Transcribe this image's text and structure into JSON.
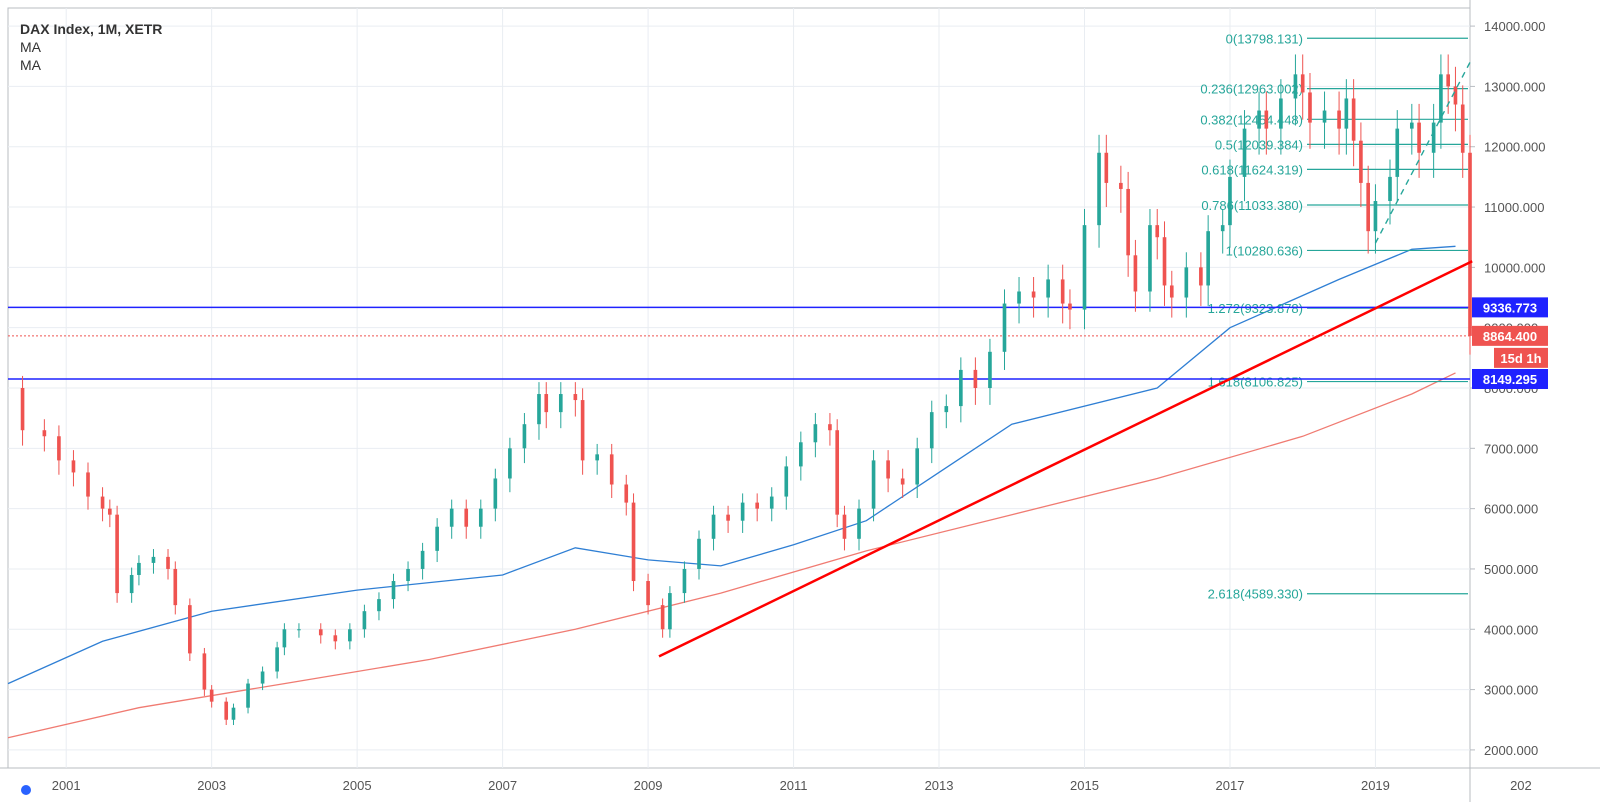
{
  "chart_data": {
    "type": "candlestick",
    "title": "DAX Index, 1M, XETR",
    "indicators": [
      "MA",
      "MA"
    ],
    "ylim": [
      1700,
      14300
    ],
    "y_ticks": [
      "2000.000",
      "3000.000",
      "4000.000",
      "5000.000",
      "6000.000",
      "7000.000",
      "8000.000",
      "9000.000",
      "10000.000",
      "11000.000",
      "12000.000",
      "13000.000",
      "14000.000"
    ],
    "x_ticks": [
      "2001",
      "2003",
      "2005",
      "2007",
      "2009",
      "2011",
      "2013",
      "2015",
      "2017",
      "2019",
      "202"
    ],
    "x_range": [
      2000.2,
      2020.3
    ],
    "close_series": [
      [
        2000.2,
        8000
      ],
      [
        2000.4,
        7300
      ],
      [
        2000.7,
        7200
      ],
      [
        2000.9,
        6800
      ],
      [
        2001.1,
        6600
      ],
      [
        2001.3,
        6200
      ],
      [
        2001.5,
        6000
      ],
      [
        2001.6,
        5900
      ],
      [
        2001.7,
        4600
      ],
      [
        2001.9,
        4900
      ],
      [
        2002.0,
        5100
      ],
      [
        2002.2,
        5200
      ],
      [
        2002.4,
        5000
      ],
      [
        2002.5,
        4400
      ],
      [
        2002.7,
        3600
      ],
      [
        2002.9,
        3000
      ],
      [
        2003.0,
        2800
      ],
      [
        2003.2,
        2500
      ],
      [
        2003.3,
        2700
      ],
      [
        2003.5,
        3100
      ],
      [
        2003.7,
        3300
      ],
      [
        2003.9,
        3700
      ],
      [
        2004.0,
        4000
      ],
      [
        2004.2,
        4000
      ],
      [
        2004.5,
        3900
      ],
      [
        2004.7,
        3800
      ],
      [
        2004.9,
        4000
      ],
      [
        2005.1,
        4300
      ],
      [
        2005.3,
        4500
      ],
      [
        2005.5,
        4800
      ],
      [
        2005.7,
        5000
      ],
      [
        2005.9,
        5300
      ],
      [
        2006.1,
        5700
      ],
      [
        2006.3,
        6000
      ],
      [
        2006.5,
        5700
      ],
      [
        2006.7,
        6000
      ],
      [
        2006.9,
        6500
      ],
      [
        2007.1,
        7000
      ],
      [
        2007.3,
        7400
      ],
      [
        2007.5,
        7900
      ],
      [
        2007.6,
        7600
      ],
      [
        2007.8,
        7900
      ],
      [
        2008.0,
        7800
      ],
      [
        2008.1,
        6800
      ],
      [
        2008.3,
        6900
      ],
      [
        2008.5,
        6400
      ],
      [
        2008.7,
        6100
      ],
      [
        2008.8,
        4800
      ],
      [
        2009.0,
        4400
      ],
      [
        2009.2,
        4000
      ],
      [
        2009.3,
        4600
      ],
      [
        2009.5,
        5000
      ],
      [
        2009.7,
        5500
      ],
      [
        2009.9,
        5900
      ],
      [
        2010.1,
        5800
      ],
      [
        2010.3,
        6100
      ],
      [
        2010.5,
        6000
      ],
      [
        2010.7,
        6200
      ],
      [
        2010.9,
        6700
      ],
      [
        2011.1,
        7100
      ],
      [
        2011.3,
        7400
      ],
      [
        2011.5,
        7300
      ],
      [
        2011.6,
        5900
      ],
      [
        2011.7,
        5500
      ],
      [
        2011.9,
        6000
      ],
      [
        2012.1,
        6800
      ],
      [
        2012.3,
        6500
      ],
      [
        2012.5,
        6400
      ],
      [
        2012.7,
        7000
      ],
      [
        2012.9,
        7600
      ],
      [
        2013.1,
        7700
      ],
      [
        2013.3,
        8300
      ],
      [
        2013.5,
        8000
      ],
      [
        2013.7,
        8600
      ],
      [
        2013.9,
        9400
      ],
      [
        2014.1,
        9600
      ],
      [
        2014.3,
        9500
      ],
      [
        2014.5,
        9800
      ],
      [
        2014.7,
        9400
      ],
      [
        2014.8,
        9300
      ],
      [
        2015.0,
        10700
      ],
      [
        2015.2,
        11900
      ],
      [
        2015.3,
        11400
      ],
      [
        2015.5,
        11300
      ],
      [
        2015.6,
        10200
      ],
      [
        2015.7,
        9600
      ],
      [
        2015.9,
        10700
      ],
      [
        2016.0,
        10500
      ],
      [
        2016.1,
        9700
      ],
      [
        2016.2,
        9500
      ],
      [
        2016.4,
        10000
      ],
      [
        2016.6,
        9700
      ],
      [
        2016.7,
        10600
      ],
      [
        2016.9,
        10700
      ],
      [
        2017.0,
        11500
      ],
      [
        2017.2,
        12300
      ],
      [
        2017.4,
        12600
      ],
      [
        2017.5,
        12300
      ],
      [
        2017.7,
        12800
      ],
      [
        2017.9,
        13200
      ],
      [
        2018.0,
        12900
      ],
      [
        2018.1,
        12400
      ],
      [
        2018.3,
        12600
      ],
      [
        2018.5,
        12300
      ],
      [
        2018.6,
        12800
      ],
      [
        2018.7,
        12100
      ],
      [
        2018.8,
        11400
      ],
      [
        2018.9,
        10600
      ],
      [
        2019.0,
        11100
      ],
      [
        2019.2,
        11500
      ],
      [
        2019.3,
        12300
      ],
      [
        2019.5,
        12400
      ],
      [
        2019.6,
        11900
      ],
      [
        2019.8,
        12400
      ],
      [
        2019.9,
        13200
      ],
      [
        2020.0,
        13000
      ],
      [
        2020.1,
        12700
      ],
      [
        2020.2,
        11900
      ],
      [
        2020.3,
        8864
      ]
    ],
    "ma_long": {
      "color": "#2f7fd4",
      "points": [
        [
          2000.2,
          3100
        ],
        [
          2001.5,
          3800
        ],
        [
          2003,
          4300
        ],
        [
          2005,
          4650
        ],
        [
          2007,
          4900
        ],
        [
          2008,
          5350
        ],
        [
          2009,
          5150
        ],
        [
          2010,
          5050
        ],
        [
          2011,
          5400
        ],
        [
          2012,
          5800
        ],
        [
          2013,
          6600
        ],
        [
          2014,
          7400
        ],
        [
          2016,
          8000
        ],
        [
          2017,
          9000
        ],
        [
          2018.5,
          9800
        ],
        [
          2019.5,
          10300
        ],
        [
          2020.1,
          10350
        ]
      ]
    },
    "ma_extra_long": {
      "color": "#f07b72",
      "points": [
        [
          2000.2,
          2200
        ],
        [
          2002,
          2700
        ],
        [
          2004,
          3100
        ],
        [
          2006,
          3500
        ],
        [
          2008,
          4000
        ],
        [
          2010,
          4600
        ],
        [
          2012,
          5300
        ],
        [
          2014,
          5900
        ],
        [
          2016,
          6500
        ],
        [
          2018,
          7200
        ],
        [
          2019.5,
          7900
        ],
        [
          2020.1,
          8250
        ]
      ]
    },
    "trend_line": {
      "color": "#ff0000",
      "points": [
        [
          2009.15,
          3550
        ],
        [
          2020.33,
          10100
        ]
      ]
    },
    "fib_dashed": {
      "color": "#26a69a",
      "points": [
        [
          2019.0,
          10400
        ],
        [
          2020.3,
          13400
        ]
      ]
    },
    "fib_levels": [
      {
        "label": "0(13798.131)",
        "value": 13798.131
      },
      {
        "label": "0.236(12963.002)",
        "value": 12963.002
      },
      {
        "label": "0.382(12454.448)",
        "value": 12454.448
      },
      {
        "label": "0.5(12039.384)",
        "value": 12039.384
      },
      {
        "label": "0.618(11624.319)",
        "value": 11624.319
      },
      {
        "label": "0.786(11033.380)",
        "value": 11033.38
      },
      {
        "label": "1(10280.636)",
        "value": 10280.636
      },
      {
        "label": "1.272(9323.878)",
        "value": 9323.878
      },
      {
        "label": "1.618(8106.825)",
        "value": 8106.825
      },
      {
        "label": "2.618(4589.330)",
        "value": 4589.33
      }
    ],
    "horizontal_lines": [
      {
        "value": 9336.773,
        "label": "9336.773",
        "color": "#1f22ff"
      },
      {
        "value": 8149.295,
        "label": "8149.295",
        "color": "#1f22ff"
      }
    ],
    "current_price": {
      "value": 8864.4,
      "label": "8864.400",
      "color": "#ef5350"
    },
    "countdown": {
      "label": "15d 1h",
      "color": "#ef5350"
    },
    "colors": {
      "up": "#26a69a",
      "down": "#ef5350",
      "fib": "#26a69a",
      "grid": "#e9edf2",
      "axis": "#555555"
    }
  }
}
